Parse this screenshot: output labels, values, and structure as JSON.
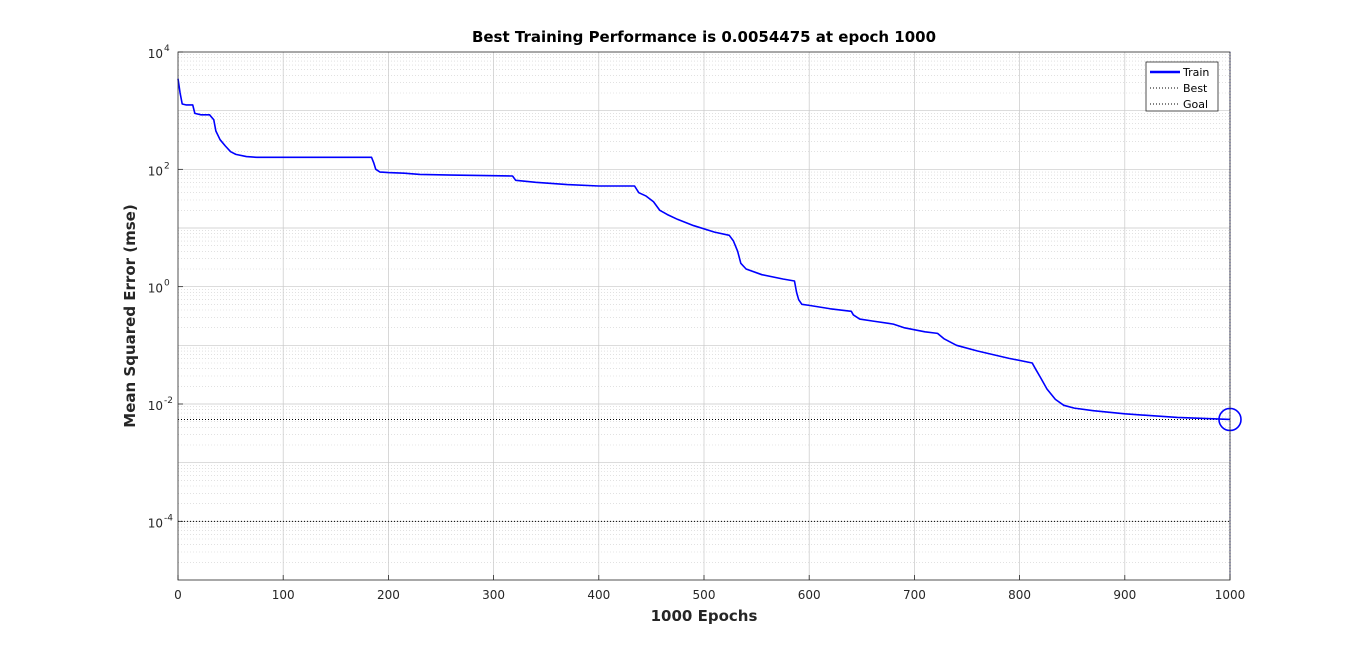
{
  "chart_data": {
    "type": "line",
    "title": "Best Training Performance is 0.0054475 at epoch 1000",
    "xlabel": "1000 Epochs",
    "ylabel": "Mean Squared Error  (mse)",
    "xlim": [
      0,
      1000
    ],
    "ylim": [
      1e-05,
      10000
    ],
    "yscale": "log",
    "grid": true,
    "minor_grid": true,
    "legend_position": "top-right",
    "x_ticks": [
      0,
      100,
      200,
      300,
      400,
      500,
      600,
      700,
      800,
      900,
      1000
    ],
    "y_ticks": [
      {
        "value": 0.0001,
        "base": "10",
        "exp": "-4"
      },
      {
        "value": 0.01,
        "base": "10",
        "exp": "-2"
      },
      {
        "value": 1,
        "base": "10",
        "exp": "0"
      },
      {
        "value": 100,
        "base": "10",
        "exp": "2"
      },
      {
        "value": 10000,
        "base": "10",
        "exp": "4"
      }
    ],
    "series": [
      {
        "name": "Train",
        "color": "#0000ff",
        "style": "solid",
        "points": [
          [
            0,
            3500
          ],
          [
            2,
            2000
          ],
          [
            4,
            1300
          ],
          [
            8,
            1250
          ],
          [
            14,
            1250
          ],
          [
            16,
            900
          ],
          [
            22,
            850
          ],
          [
            30,
            850
          ],
          [
            34,
            700
          ],
          [
            36,
            450
          ],
          [
            40,
            320
          ],
          [
            45,
            250
          ],
          [
            50,
            200
          ],
          [
            55,
            180
          ],
          [
            65,
            165
          ],
          [
            75,
            160
          ],
          [
            100,
            160
          ],
          [
            150,
            160
          ],
          [
            184,
            160
          ],
          [
            186,
            130
          ],
          [
            188,
            100
          ],
          [
            192,
            90
          ],
          [
            200,
            88
          ],
          [
            215,
            86
          ],
          [
            230,
            82
          ],
          [
            260,
            80
          ],
          [
            300,
            78
          ],
          [
            318,
            77
          ],
          [
            321,
            65
          ],
          [
            340,
            60
          ],
          [
            370,
            55
          ],
          [
            400,
            52
          ],
          [
            434,
            52
          ],
          [
            438,
            40
          ],
          [
            445,
            35
          ],
          [
            452,
            28
          ],
          [
            458,
            20
          ],
          [
            465,
            17
          ],
          [
            475,
            14
          ],
          [
            490,
            11
          ],
          [
            510,
            8.5
          ],
          [
            524,
            7.5
          ],
          [
            528,
            6
          ],
          [
            532,
            4
          ],
          [
            535,
            2.5
          ],
          [
            540,
            2
          ],
          [
            555,
            1.6
          ],
          [
            575,
            1.35
          ],
          [
            586,
            1.25
          ],
          [
            588,
            0.8
          ],
          [
            590,
            0.6
          ],
          [
            593,
            0.5
          ],
          [
            600,
            0.48
          ],
          [
            620,
            0.42
          ],
          [
            640,
            0.38
          ],
          [
            642,
            0.33
          ],
          [
            648,
            0.28
          ],
          [
            660,
            0.26
          ],
          [
            680,
            0.23
          ],
          [
            690,
            0.2
          ],
          [
            710,
            0.17
          ],
          [
            722,
            0.16
          ],
          [
            728,
            0.13
          ],
          [
            740,
            0.1
          ],
          [
            760,
            0.08
          ],
          [
            790,
            0.06
          ],
          [
            812,
            0.05
          ],
          [
            815,
            0.04
          ],
          [
            820,
            0.028
          ],
          [
            826,
            0.018
          ],
          [
            834,
            0.012
          ],
          [
            842,
            0.0095
          ],
          [
            852,
            0.0085
          ],
          [
            870,
            0.0077
          ],
          [
            900,
            0.0068
          ],
          [
            950,
            0.0059
          ],
          [
            1000,
            0.0054475
          ]
        ]
      },
      {
        "name": "Best",
        "color": "#000000",
        "style": "dotted",
        "value": 0.0054475
      },
      {
        "name": "Goal",
        "color": "#000000",
        "style": "dotted",
        "value": 0.0001
      }
    ],
    "best_marker": {
      "x": 1000,
      "y": 0.0054475
    },
    "best_epoch_line": {
      "x": 1000
    }
  }
}
